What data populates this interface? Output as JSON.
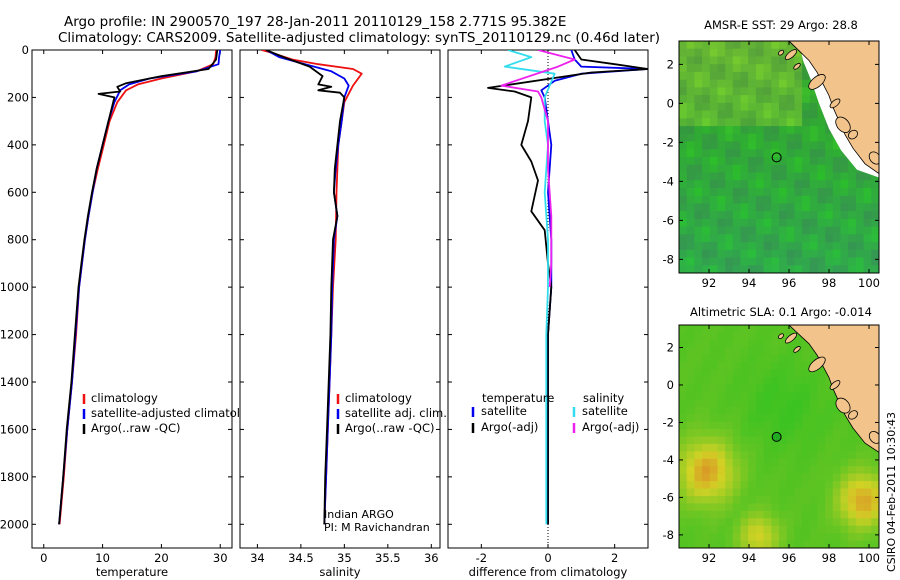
{
  "title_line1": "Argo profile: IN 2900570_197 28-Jan-2011 20110129_158 2.771S 95.382E",
  "title_line2": "Climatology: CARS2009. Satellite-adjusted climatology: synTS_20110129.nc (0.46d later)",
  "credit": "CSIRO 04-Feb-2011 10:30:43",
  "colors": {
    "clim": "#ee1111",
    "sat": "#0000ee",
    "argo": "#000000",
    "sat_sal": "#33ddee",
    "argo_sal": "#ee22ee",
    "land": "#f2c48c",
    "coast": "#000000"
  },
  "chart_data": [
    {
      "id": "temperature",
      "type": "line",
      "xlabel": "temperature",
      "ylabel": "",
      "xlim": [
        -2,
        32
      ],
      "ylim": [
        2100,
        0
      ],
      "xticks": [
        0,
        10,
        20,
        30
      ],
      "yticks": [
        0,
        200,
        400,
        600,
        800,
        1000,
        1200,
        1400,
        1600,
        1800,
        2000
      ],
      "legend": [
        {
          "label": "climatology",
          "color": "clim"
        },
        {
          "label": "satellite-adjusted climatology",
          "color": "sat"
        },
        {
          "label": "Argo(..raw -QC)",
          "color": "argo"
        }
      ],
      "series": [
        {
          "name": "climatology",
          "color": "clim",
          "points": [
            [
              29.3,
              0
            ],
            [
              29.2,
              30
            ],
            [
              28.8,
              60
            ],
            [
              26,
              90
            ],
            [
              20,
              120
            ],
            [
              16,
              145
            ],
            [
              14,
              170
            ],
            [
              12.5,
              220
            ],
            [
              11.2,
              300
            ],
            [
              10.2,
              400
            ],
            [
              9.2,
              500
            ],
            [
              8.3,
              600
            ],
            [
              7.6,
              700
            ],
            [
              7,
              800
            ],
            [
              6.5,
              900
            ],
            [
              6,
              1000
            ],
            [
              5.5,
              1200
            ],
            [
              4.8,
              1400
            ],
            [
              4,
              1600
            ],
            [
              3.4,
              1800
            ],
            [
              2.7,
              2000
            ]
          ]
        },
        {
          "name": "satellite",
          "color": "sat",
          "points": [
            [
              30,
              0
            ],
            [
              29.8,
              30
            ],
            [
              29.7,
              60
            ],
            [
              26,
              90
            ],
            [
              18,
              120
            ],
            [
              14.5,
              145
            ],
            [
              13,
              170
            ],
            [
              12,
              220
            ],
            [
              11,
              300
            ],
            [
              10,
              400
            ],
            [
              9,
              500
            ],
            [
              8.3,
              600
            ],
            [
              7.6,
              700
            ],
            [
              7,
              800
            ],
            [
              6.5,
              900
            ],
            [
              6,
              1000
            ],
            [
              5.4,
              1200
            ],
            [
              4.8,
              1400
            ],
            [
              4,
              1600
            ],
            [
              3.3,
              1800
            ],
            [
              2.6,
              2000
            ]
          ]
        },
        {
          "name": "argo",
          "color": "argo",
          "points": [
            [
              29.5,
              0
            ],
            [
              29.3,
              40
            ],
            [
              28,
              80
            ],
            [
              20,
              110
            ],
            [
              14,
              140
            ],
            [
              12.5,
              155
            ],
            [
              13,
              175
            ],
            [
              9.3,
              185
            ],
            [
              12,
              200
            ],
            [
              11,
              300
            ],
            [
              10,
              400
            ],
            [
              9,
              500
            ],
            [
              8.2,
              600
            ],
            [
              7.5,
              700
            ],
            [
              6.9,
              800
            ],
            [
              6.4,
              900
            ],
            [
              5.9,
              1000
            ],
            [
              5.3,
              1200
            ],
            [
              4.7,
              1400
            ],
            [
              3.9,
              1600
            ],
            [
              3.3,
              1800
            ],
            [
              2.6,
              2000
            ]
          ]
        }
      ]
    },
    {
      "id": "salinity",
      "type": "line",
      "xlabel": "salinity",
      "ylabel": "",
      "xlim": [
        33.8,
        36.1
      ],
      "ylim": [
        2100,
        0
      ],
      "xticks": [
        34,
        34.5,
        35,
        35.5,
        36
      ],
      "yticks": [
        0,
        200,
        400,
        600,
        800,
        1000,
        1200,
        1400,
        1600,
        1800,
        2000
      ],
      "legend": [
        {
          "label": "climatology",
          "color": "clim"
        },
        {
          "label": "satellite adj. clim.",
          "color": "sat"
        },
        {
          "label": "Argo(..raw -QC)",
          "color": "argo"
        }
      ],
      "annotation": [
        "Indian ARGO",
        "PI: M Ravichandran"
      ],
      "series": [
        {
          "name": "climatology",
          "color": "clim",
          "points": [
            [
              34.05,
              0
            ],
            [
              34.15,
              10
            ],
            [
              34.4,
              40
            ],
            [
              34.7,
              60
            ],
            [
              35.1,
              80
            ],
            [
              35.2,
              100
            ],
            [
              35.1,
              150
            ],
            [
              35,
              220
            ],
            [
              34.97,
              300
            ],
            [
              34.93,
              400
            ],
            [
              34.92,
              500
            ],
            [
              34.91,
              600
            ],
            [
              34.9,
              800
            ],
            [
              34.87,
              1000
            ],
            [
              34.85,
              1200
            ],
            [
              34.83,
              1400
            ],
            [
              34.81,
              1600
            ],
            [
              34.79,
              1800
            ],
            [
              34.77,
              2000
            ]
          ]
        },
        {
          "name": "satellite",
          "color": "sat",
          "points": [
            [
              34.1,
              0
            ],
            [
              34.25,
              30
            ],
            [
              34.55,
              60
            ],
            [
              34.85,
              90
            ],
            [
              35,
              120
            ],
            [
              35.05,
              150
            ],
            [
              35,
              200
            ],
            [
              34.97,
              300
            ],
            [
              34.93,
              400
            ],
            [
              34.9,
              500
            ],
            [
              34.88,
              600
            ],
            [
              34.92,
              700
            ],
            [
              34.88,
              800
            ],
            [
              34.86,
              1000
            ],
            [
              34.85,
              1200
            ],
            [
              34.83,
              1400
            ],
            [
              34.81,
              1600
            ],
            [
              34.79,
              1800
            ],
            [
              34.77,
              2000
            ]
          ]
        },
        {
          "name": "argo",
          "color": "argo",
          "points": [
            [
              34.1,
              0
            ],
            [
              34.3,
              30
            ],
            [
              34.6,
              70
            ],
            [
              34.75,
              110
            ],
            [
              34.7,
              145
            ],
            [
              34.85,
              155
            ],
            [
              34.7,
              170
            ],
            [
              34.95,
              180
            ],
            [
              35,
              200
            ],
            [
              34.95,
              300
            ],
            [
              34.92,
              400
            ],
            [
              34.89,
              500
            ],
            [
              34.88,
              600
            ],
            [
              34.92,
              700
            ],
            [
              34.87,
              800
            ],
            [
              34.85,
              1000
            ],
            [
              34.84,
              1200
            ],
            [
              34.82,
              1400
            ],
            [
              34.8,
              1600
            ],
            [
              34.78,
              1800
            ],
            [
              34.77,
              2000
            ]
          ]
        }
      ]
    },
    {
      "id": "difference",
      "type": "line",
      "xlabel": "difference from climatology",
      "ylabel": "",
      "xlim": [
        -3,
        3
      ],
      "ylim": [
        2100,
        0
      ],
      "xticks": [
        -2,
        0,
        2
      ],
      "yticks": [
        0,
        200,
        400,
        600,
        800,
        1000,
        1200,
        1400,
        1600,
        1800,
        2000
      ],
      "legend_left_header": "temperature",
      "legend_right_header": "salinity",
      "legend": [
        {
          "label": "satellite",
          "color": "sat"
        },
        {
          "label": "Argo(-adj)",
          "color": "argo"
        },
        {
          "label": "satellite",
          "color": "sat_sal"
        },
        {
          "label": "Argo(-adj)",
          "color": "argo_sal"
        }
      ],
      "series": [
        {
          "name": "temperature satellite",
          "color": "sat",
          "points": [
            [
              0.7,
              0
            ],
            [
              0.8,
              40
            ],
            [
              1,
              70
            ],
            [
              3,
              80
            ],
            [
              1,
              100
            ],
            [
              0.2,
              130
            ],
            [
              -0.2,
              170
            ],
            [
              -0.1,
              200
            ],
            [
              0,
              300
            ],
            [
              0.1,
              400
            ],
            [
              0,
              600
            ],
            [
              0.1,
              800
            ],
            [
              0.1,
              1000
            ],
            [
              0,
              1200
            ],
            [
              0,
              1400
            ],
            [
              0,
              1600
            ],
            [
              0,
              1800
            ],
            [
              0,
              2000
            ]
          ]
        },
        {
          "name": "temperature argo",
          "color": "argo",
          "points": [
            [
              0.8,
              0
            ],
            [
              1,
              40
            ],
            [
              2,
              60
            ],
            [
              3,
              80
            ],
            [
              1.3,
              95
            ],
            [
              -1.8,
              160
            ],
            [
              -1,
              175
            ],
            [
              -0.5,
              200
            ],
            [
              -0.6,
              300
            ],
            [
              -0.8,
              400
            ],
            [
              -0.5,
              470
            ],
            [
              -0.3,
              550
            ],
            [
              -0.5,
              680
            ],
            [
              -0.1,
              760
            ],
            [
              0,
              900
            ],
            [
              0.1,
              1000
            ],
            [
              0,
              1200
            ],
            [
              0,
              1400
            ],
            [
              0,
              1600
            ],
            [
              0,
              1800
            ],
            [
              0,
              2000
            ]
          ]
        },
        {
          "name": "salinity satellite",
          "color": "sat_sal",
          "points": [
            [
              -1.2,
              0
            ],
            [
              -0.5,
              30
            ],
            [
              -1.3,
              70
            ],
            [
              0.2,
              100
            ],
            [
              -0.1,
              200
            ],
            [
              -0.1,
              300
            ],
            [
              0,
              400
            ],
            [
              -0.1,
              600
            ],
            [
              0,
              800
            ],
            [
              0,
              1000
            ],
            [
              -0.05,
              1200
            ],
            [
              -0.05,
              1400
            ],
            [
              -0.05,
              1600
            ],
            [
              -0.05,
              1800
            ],
            [
              -0.05,
              2000
            ]
          ]
        },
        {
          "name": "salinity argo",
          "color": "argo_sal",
          "points": [
            [
              -0.3,
              0
            ],
            [
              0.8,
              40
            ],
            [
              0.3,
              70
            ],
            [
              -1.4,
              150
            ],
            [
              -0.3,
              175
            ],
            [
              -0.2,
              200
            ],
            [
              0,
              300
            ],
            [
              0,
              500
            ],
            [
              0.1,
              700
            ],
            [
              0.1,
              900
            ],
            [
              0.05,
              1000
            ]
          ]
        }
      ]
    },
    {
      "id": "sst_map",
      "type": "heatmap",
      "title": "AMSR-E SST: 29 Argo: 28.8",
      "xlim": [
        90.5,
        100.5
      ],
      "ylim": [
        -8.7,
        3.2
      ],
      "xticks": [
        92,
        94,
        96,
        98,
        100
      ],
      "yticks": [
        2,
        0,
        -2,
        -4,
        -6,
        -8
      ],
      "marker": {
        "lon": 95.382,
        "lat": -2.771,
        "filled": false
      }
    },
    {
      "id": "sla_map",
      "type": "heatmap",
      "title": "Altimetric SLA: 0.1 Argo: -0.014",
      "xlim": [
        90.5,
        100.5
      ],
      "ylim": [
        -8.7,
        3.2
      ],
      "xticks": [
        92,
        94,
        96,
        98,
        100
      ],
      "yticks": [
        2,
        0,
        -2,
        -4,
        -6,
        -8
      ],
      "marker": {
        "lon": 95.382,
        "lat": -2.771,
        "filled": true
      }
    }
  ]
}
